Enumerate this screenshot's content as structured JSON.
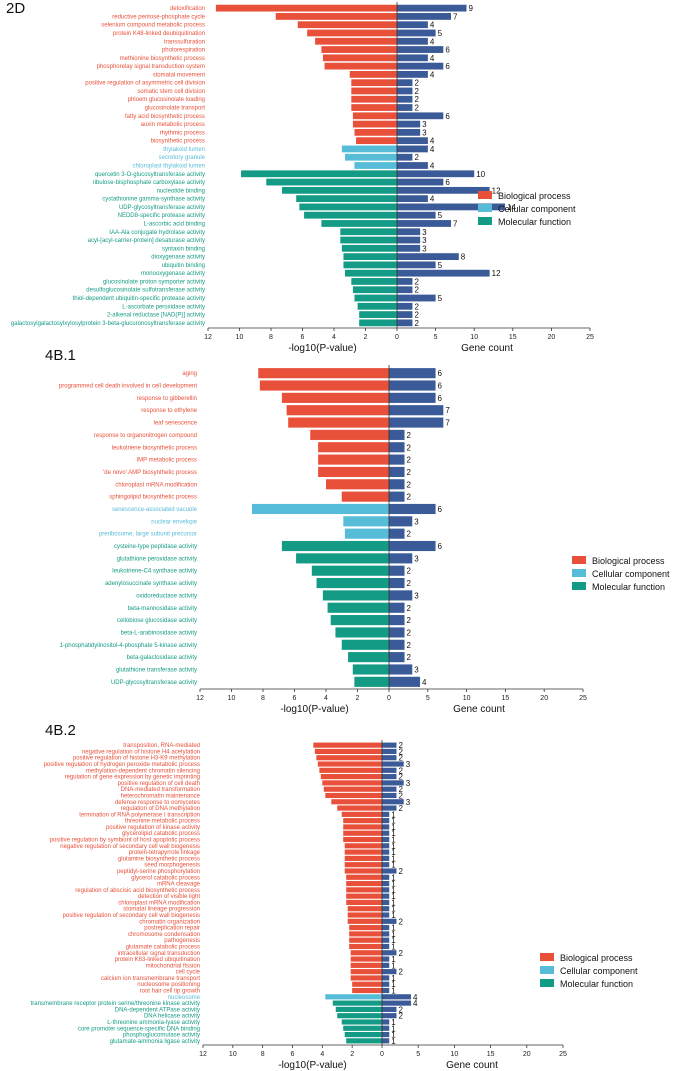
{
  "colors": {
    "bp": "#e8503a",
    "cc": "#56bcd8",
    "mf": "#149b85",
    "gene": "#3b5a98",
    "axis": "#333333"
  },
  "chart_data": [
    {
      "type": "bar",
      "title": "2D",
      "xlabel_left": "-log10(P-value)",
      "xlabel_right": "Gene count",
      "pvalue_ticks": [
        12,
        10,
        8,
        6,
        4,
        2,
        0
      ],
      "count_ticks": [
        5,
        10,
        15,
        20,
        25
      ],
      "legend": [
        "Biological process",
        "Cellular component",
        "Molecular function"
      ],
      "categories": [
        {
          "label": "detoxification",
          "group": "bp",
          "pvalue": 11.5,
          "count": 9
        },
        {
          "label": "reductive pentose-phosphate cycle",
          "group": "bp",
          "pvalue": 7.7,
          "count": 7
        },
        {
          "label": "selenium compound metabolic process",
          "group": "bp",
          "pvalue": 6.3,
          "count": 4
        },
        {
          "label": "protein K48-linked deubiquitination",
          "group": "bp",
          "pvalue": 5.7,
          "count": 5
        },
        {
          "label": "transsulfuration",
          "group": "bp",
          "pvalue": 5.2,
          "count": 4
        },
        {
          "label": "photorespiration",
          "group": "bp",
          "pvalue": 4.8,
          "count": 6
        },
        {
          "label": "methionine biosynthetic process",
          "group": "bp",
          "pvalue": 4.7,
          "count": 4
        },
        {
          "label": "phosphorelay signal transduction system",
          "group": "bp",
          "pvalue": 4.6,
          "count": 6
        },
        {
          "label": "stomatal movement",
          "group": "bp",
          "pvalue": 3.0,
          "count": 4
        },
        {
          "label": "positive regulation of asymmetric cell division",
          "group": "bp",
          "pvalue": 2.9,
          "count": 2
        },
        {
          "label": "somatic stem cell division",
          "group": "bp",
          "pvalue": 2.9,
          "count": 2
        },
        {
          "label": "phloem glucosinolate loading",
          "group": "bp",
          "pvalue": 2.9,
          "count": 2
        },
        {
          "label": "glucosinolate transport",
          "group": "bp",
          "pvalue": 2.9,
          "count": 2
        },
        {
          "label": "fatty acid biosynthetic process",
          "group": "bp",
          "pvalue": 2.8,
          "count": 6
        },
        {
          "label": "auxin metabolic process",
          "group": "bp",
          "pvalue": 2.8,
          "count": 3
        },
        {
          "label": "rhythmic process",
          "group": "bp",
          "pvalue": 2.7,
          "count": 3
        },
        {
          "label": "biosynthetic process",
          "group": "bp",
          "pvalue": 2.6,
          "count": 4
        },
        {
          "label": "thylakoid lumen",
          "group": "cc",
          "pvalue": 3.5,
          "count": 4
        },
        {
          "label": "secretory granule",
          "group": "cc",
          "pvalue": 3.3,
          "count": 2
        },
        {
          "label": "chloroplast thylakoid lumen",
          "group": "cc",
          "pvalue": 2.7,
          "count": 4
        },
        {
          "label": "quercetin 3-O-glucosyltransferase activity",
          "group": "mf",
          "pvalue": 9.9,
          "count": 10
        },
        {
          "label": "ribulose-bisphosphate carboxylase activity",
          "group": "mf",
          "pvalue": 8.3,
          "count": 6
        },
        {
          "label": "nucleotide binding",
          "group": "mf",
          "pvalue": 7.3,
          "count": 12
        },
        {
          "label": "cystathionine gamma-synthase activity",
          "group": "mf",
          "pvalue": 6.4,
          "count": 4
        },
        {
          "label": "UDP-glycosyltransferase activity",
          "group": "mf",
          "pvalue": 6.2,
          "count": 14
        },
        {
          "label": "NEDD8-specific protease activity",
          "group": "mf",
          "pvalue": 5.9,
          "count": 5
        },
        {
          "label": "L-ascorbic acid binding",
          "group": "mf",
          "pvalue": 4.8,
          "count": 7
        },
        {
          "label": "IAA-Ala conjugate hydrolase activity",
          "group": "mf",
          "pvalue": 3.6,
          "count": 3
        },
        {
          "label": "acyl-[acyl-carrier-protein] desaturase activity",
          "group": "mf",
          "pvalue": 3.6,
          "count": 3
        },
        {
          "label": "syntaxin binding",
          "group": "mf",
          "pvalue": 3.5,
          "count": 3
        },
        {
          "label": "dioxygenase activity",
          "group": "mf",
          "pvalue": 3.4,
          "count": 8
        },
        {
          "label": "ubiquitin binding",
          "group": "mf",
          "pvalue": 3.4,
          "count": 5
        },
        {
          "label": "monooxygenase activity",
          "group": "mf",
          "pvalue": 3.3,
          "count": 12
        },
        {
          "label": "glucosinolate proton symporter activity",
          "group": "mf",
          "pvalue": 2.9,
          "count": 2
        },
        {
          "label": "desulfoglucosinolate sulfotransferase activity",
          "group": "mf",
          "pvalue": 2.8,
          "count": 2
        },
        {
          "label": "thiol-dependent ubiquitin-specific protease activity",
          "group": "mf",
          "pvalue": 2.7,
          "count": 5
        },
        {
          "label": "L-ascorbate peroxidase activity",
          "group": "mf",
          "pvalue": 2.5,
          "count": 2
        },
        {
          "label": "2-alkenal reductase [NAD(P)] activity",
          "group": "mf",
          "pvalue": 2.4,
          "count": 2
        },
        {
          "label": "galactosylgalactosylxylosylprotein 3-beta-glucuronosyltransferase activity",
          "group": "mf",
          "pvalue": 2.4,
          "count": 2
        }
      ]
    },
    {
      "type": "bar",
      "title": "4B.1",
      "xlabel_left": "-log10(P-value)",
      "xlabel_right": "Gene count",
      "pvalue_ticks": [
        12,
        10,
        8,
        6,
        4,
        2,
        0
      ],
      "count_ticks": [
        5,
        10,
        15,
        20,
        25
      ],
      "legend": [
        "Biological process",
        "Cellular component",
        "Molecular function"
      ],
      "categories": [
        {
          "label": "aging",
          "group": "bp",
          "pvalue": 8.3,
          "count": 6
        },
        {
          "label": "programmed cell death involved in cell development",
          "group": "bp",
          "pvalue": 8.2,
          "count": 6
        },
        {
          "label": "response to gibberellin",
          "group": "bp",
          "pvalue": 6.8,
          "count": 6
        },
        {
          "label": "response to ethylene",
          "group": "bp",
          "pvalue": 6.5,
          "count": 7
        },
        {
          "label": "leaf senescence",
          "group": "bp",
          "pvalue": 6.4,
          "count": 7
        },
        {
          "label": "response to organonitrogen compound",
          "group": "bp",
          "pvalue": 5.0,
          "count": 2
        },
        {
          "label": "leukotriene biosynthetic process",
          "group": "bp",
          "pvalue": 4.5,
          "count": 2
        },
        {
          "label": "IMP metabolic process",
          "group": "bp",
          "pvalue": 4.5,
          "count": 2
        },
        {
          "label": "'de novo' AMP biosynthetic process",
          "group": "bp",
          "pvalue": 4.5,
          "count": 2
        },
        {
          "label": "chloroplast mRNA modification",
          "group": "bp",
          "pvalue": 4.0,
          "count": 2
        },
        {
          "label": "sphingolipid biosynthetic process",
          "group": "bp",
          "pvalue": 3.0,
          "count": 2
        },
        {
          "label": "senescence-associated vacuole",
          "group": "cc",
          "pvalue": 8.7,
          "count": 6
        },
        {
          "label": "nuclear envelope",
          "group": "cc",
          "pvalue": 2.9,
          "count": 3
        },
        {
          "label": "preribosome, large subunit precursor",
          "group": "cc",
          "pvalue": 2.8,
          "count": 2
        },
        {
          "label": "cysteine-type peptidase activity",
          "group": "mf",
          "pvalue": 6.8,
          "count": 6
        },
        {
          "label": "glutathione peroxidase activity",
          "group": "mf",
          "pvalue": 5.9,
          "count": 3
        },
        {
          "label": "leukotriene-C4 synthase activity",
          "group": "mf",
          "pvalue": 4.9,
          "count": 2
        },
        {
          "label": "adenylosuccinate synthase activity",
          "group": "mf",
          "pvalue": 4.6,
          "count": 2
        },
        {
          "label": "oxidoreductase activity",
          "group": "mf",
          "pvalue": 4.2,
          "count": 3
        },
        {
          "label": "beta-mannosidase activity",
          "group": "mf",
          "pvalue": 3.9,
          "count": 2
        },
        {
          "label": "cellobiose glucosidase activity",
          "group": "mf",
          "pvalue": 3.7,
          "count": 2
        },
        {
          "label": "beta-L-arabinosidase activity",
          "group": "mf",
          "pvalue": 3.4,
          "count": 2
        },
        {
          "label": "1-phosphatidylinositol-4-phosphate 5-kinase activity",
          "group": "mf",
          "pvalue": 3.0,
          "count": 2
        },
        {
          "label": "beta-galactosidase activity",
          "group": "mf",
          "pvalue": 2.6,
          "count": 2
        },
        {
          "label": "glutathione transferase activity",
          "group": "mf",
          "pvalue": 2.3,
          "count": 3
        },
        {
          "label": "UDP-glycosyltransferase activity",
          "group": "mf",
          "pvalue": 2.2,
          "count": 4
        }
      ]
    },
    {
      "type": "bar",
      "title": "4B.2",
      "xlabel_left": "-log10(P-value)",
      "xlabel_right": "Gene count",
      "pvalue_ticks": [
        12,
        10,
        8,
        6,
        4,
        2,
        0
      ],
      "count_ticks": [
        5,
        10,
        15,
        20,
        25
      ],
      "legend": [
        "Biological process",
        "Cellular component",
        "Molecular function"
      ],
      "categories": [
        {
          "label": "transposition, RNA-mediated",
          "group": "bp",
          "pvalue": 4.6,
          "count": 2
        },
        {
          "label": "negative regulation of histone H4 acetylation",
          "group": "bp",
          "pvalue": 4.5,
          "count": 2
        },
        {
          "label": "positive regulation of histone H3-K9 methylation",
          "group": "bp",
          "pvalue": 4.4,
          "count": 2
        },
        {
          "label": "positive regulation of hydrogen peroxide metabolic process",
          "group": "bp",
          "pvalue": 4.3,
          "count": 3
        },
        {
          "label": "methylation-dependent chromatin silencing",
          "group": "bp",
          "pvalue": 4.2,
          "count": 2
        },
        {
          "label": "regulation of gene expression by genetic imprinting",
          "group": "bp",
          "pvalue": 4.1,
          "count": 2
        },
        {
          "label": "positive regulation of cell death",
          "group": "bp",
          "pvalue": 4.0,
          "count": 3
        },
        {
          "label": "DNA-mediated transformation",
          "group": "bp",
          "pvalue": 3.9,
          "count": 2
        },
        {
          "label": "heterochromatin maintenance",
          "group": "bp",
          "pvalue": 3.8,
          "count": 2
        },
        {
          "label": "defense response to oomycetes",
          "group": "bp",
          "pvalue": 3.4,
          "count": 3
        },
        {
          "label": "regulation of DNA methylation",
          "group": "bp",
          "pvalue": 3.0,
          "count": 2
        },
        {
          "label": "termination of RNA polymerase I transcription",
          "group": "bp",
          "pvalue": 2.7,
          "count": 1
        },
        {
          "label": "threonine metabolic process",
          "group": "bp",
          "pvalue": 2.6,
          "count": 1
        },
        {
          "label": "positive regulation of kinase activity",
          "group": "bp",
          "pvalue": 2.6,
          "count": 1
        },
        {
          "label": "glycerolipid catabolic process",
          "group": "bp",
          "pvalue": 2.6,
          "count": 1
        },
        {
          "label": "positive regulation by symbiont of host apoptotic process",
          "group": "bp",
          "pvalue": 2.6,
          "count": 1
        },
        {
          "label": "negative regulation of secondary cell wall biogenesis",
          "group": "bp",
          "pvalue": 2.5,
          "count": 1
        },
        {
          "label": "protein-tetrapyrrole linkage",
          "group": "bp",
          "pvalue": 2.5,
          "count": 1
        },
        {
          "label": "glutamine biosynthetic process",
          "group": "bp",
          "pvalue": 2.5,
          "count": 1
        },
        {
          "label": "seed morphogenesis",
          "group": "bp",
          "pvalue": 2.5,
          "count": 1
        },
        {
          "label": "peptidyl-serine phosphorylation",
          "group": "bp",
          "pvalue": 2.5,
          "count": 2
        },
        {
          "label": "glycerol catabolic process",
          "group": "bp",
          "pvalue": 2.4,
          "count": 1
        },
        {
          "label": "mRNA cleavage",
          "group": "bp",
          "pvalue": 2.4,
          "count": 1
        },
        {
          "label": "regulation of abscisic acid biosynthetic process",
          "group": "bp",
          "pvalue": 2.4,
          "count": 1
        },
        {
          "label": "detection of visible light",
          "group": "bp",
          "pvalue": 2.4,
          "count": 1
        },
        {
          "label": "chloroplast mRNA modification",
          "group": "bp",
          "pvalue": 2.4,
          "count": 1
        },
        {
          "label": "stomatal lineage progression",
          "group": "bp",
          "pvalue": 2.3,
          "count": 1
        },
        {
          "label": "positive regulation of secondary cell wall biogenesis",
          "group": "bp",
          "pvalue": 2.3,
          "count": 1
        },
        {
          "label": "chromatin organization",
          "group": "bp",
          "pvalue": 2.3,
          "count": 2
        },
        {
          "label": "postreplication repair",
          "group": "bp",
          "pvalue": 2.2,
          "count": 1
        },
        {
          "label": "chromosome condensation",
          "group": "bp",
          "pvalue": 2.2,
          "count": 1
        },
        {
          "label": "pathogenesis",
          "group": "bp",
          "pvalue": 2.2,
          "count": 1
        },
        {
          "label": "glutamate catabolic process",
          "group": "bp",
          "pvalue": 2.2,
          "count": 1
        },
        {
          "label": "intracellular signal transduction",
          "group": "bp",
          "pvalue": 2.1,
          "count": 2
        },
        {
          "label": "protein K63-linked ubiquitination",
          "group": "bp",
          "pvalue": 2.1,
          "count": 1
        },
        {
          "label": "mitochondrial fission",
          "group": "bp",
          "pvalue": 2.1,
          "count": 1
        },
        {
          "label": "cell cycle",
          "group": "bp",
          "pvalue": 2.1,
          "count": 2
        },
        {
          "label": "calcium ion transmembrane transport",
          "group": "bp",
          "pvalue": 2.1,
          "count": 1
        },
        {
          "label": "nucleosome positioning",
          "group": "bp",
          "pvalue": 2.0,
          "count": 1
        },
        {
          "label": "root hair cell tip growth",
          "group": "bp",
          "pvalue": 2.0,
          "count": 1
        },
        {
          "label": "nucleosome",
          "group": "cc",
          "pvalue": 3.8,
          "count": 4
        },
        {
          "label": "transmembrane receptor protein serine/threonine kinase activity",
          "group": "mf",
          "pvalue": 3.3,
          "count": 4
        },
        {
          "label": "DNA-dependent ATPase activity",
          "group": "mf",
          "pvalue": 3.1,
          "count": 2
        },
        {
          "label": "DNA helicase activity",
          "group": "mf",
          "pvalue": 3.0,
          "count": 2
        },
        {
          "label": "L-threonine ammonia-lyase activity",
          "group": "mf",
          "pvalue": 2.7,
          "count": 1
        },
        {
          "label": "core promoter sequence-specific DNA binding",
          "group": "mf",
          "pvalue": 2.6,
          "count": 1
        },
        {
          "label": "phosphoglucomutase activity",
          "group": "mf",
          "pvalue": 2.5,
          "count": 1
        },
        {
          "label": "glutamate-ammonia ligase activity",
          "group": "mf",
          "pvalue": 2.4,
          "count": 1
        }
      ]
    }
  ]
}
